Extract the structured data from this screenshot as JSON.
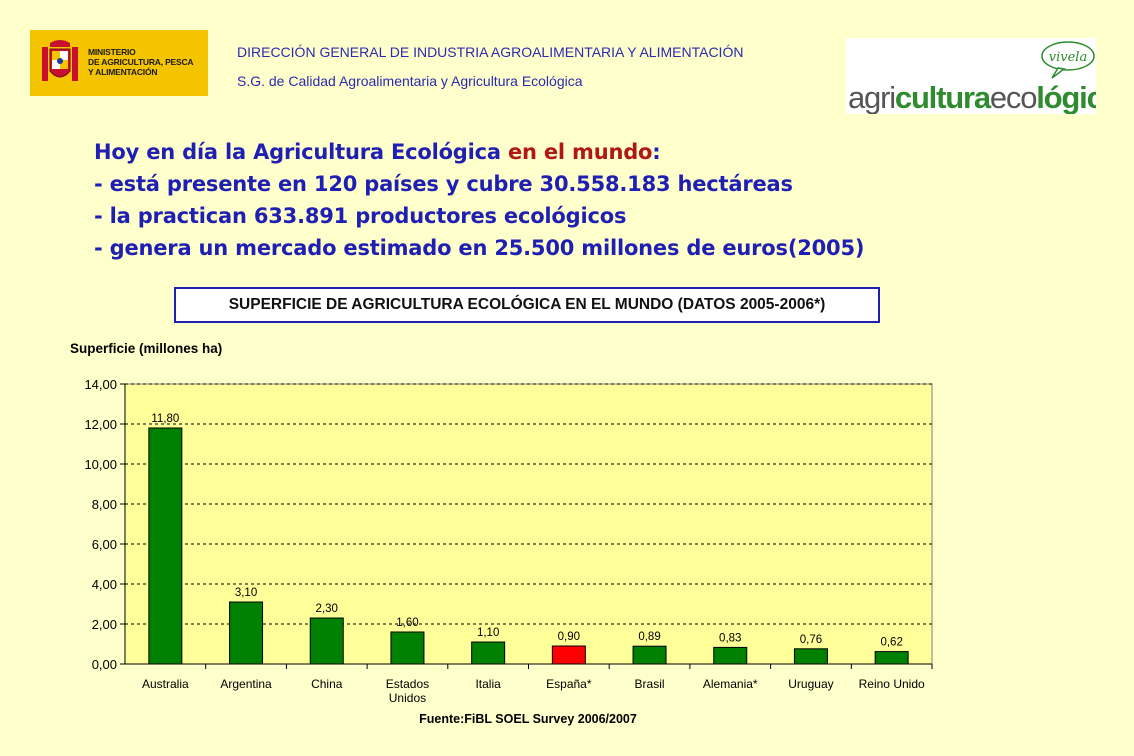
{
  "header": {
    "ministry_logo_text": "MINISTERIO\nDE AGRICULTURA, PESCA\nY ALIMENTACIÓN",
    "line1": "DIRECCIÓN GENERAL DE INDUSTRIA AGROALIMENTARIA Y ALIMENTACIÓN",
    "line2": "S.G. de Calidad Agroalimentaria y Agricultura Ecológica",
    "logo_right_badge": "vivela",
    "logo_right_text": {
      "part1": "agri",
      "part2": "cultura",
      "part3": "eco",
      "part4": "lógica"
    }
  },
  "intro": {
    "line1_prefix": "Hoy en día la Agricultura Ecológica ",
    "line1_highlight": "en el mundo",
    "line1_suffix": ":",
    "line2": "- está presente en 120 países y cubre 30.558.183 hectáreas",
    "line3": "- la practican 633.891 productores ecológicos",
    "line4": "- genera un mercado estimado en  25.500 millones de euros(2005)"
  },
  "chart_title": "SUPERFICIE DE AGRICULTURA ECOLÓGICA EN EL MUNDO (DATOS 2005-2006*)",
  "chart_data": {
    "type": "bar",
    "ylabel": "Superficie (millones ha)",
    "source": "Fuente:FiBL SOEL Survey 2006/2007",
    "ylim": [
      0,
      14
    ],
    "yticks": [
      "0,00",
      "2,00",
      "4,00",
      "6,00",
      "8,00",
      "10,00",
      "12,00",
      "14,00"
    ],
    "grid": true,
    "categories": [
      "Australia",
      "Argentina",
      "China",
      "Estados\nUnidos",
      "Italia",
      "España*",
      "Brasil",
      "Alemania*",
      "Uruguay",
      "Reino Unido"
    ],
    "values": [
      11.8,
      3.1,
      2.3,
      1.6,
      1.1,
      0.9,
      0.89,
      0.83,
      0.76,
      0.62
    ],
    "value_labels": [
      "11,80",
      "3,10",
      "2,30",
      "1,60",
      "1,10",
      "0,90",
      "0,89",
      "0,83",
      "0,76",
      "0,62"
    ],
    "bar_color": "#008000",
    "highlight_index": 5,
    "highlight_color": "#ff0000",
    "plot_background": "#ffff99"
  }
}
